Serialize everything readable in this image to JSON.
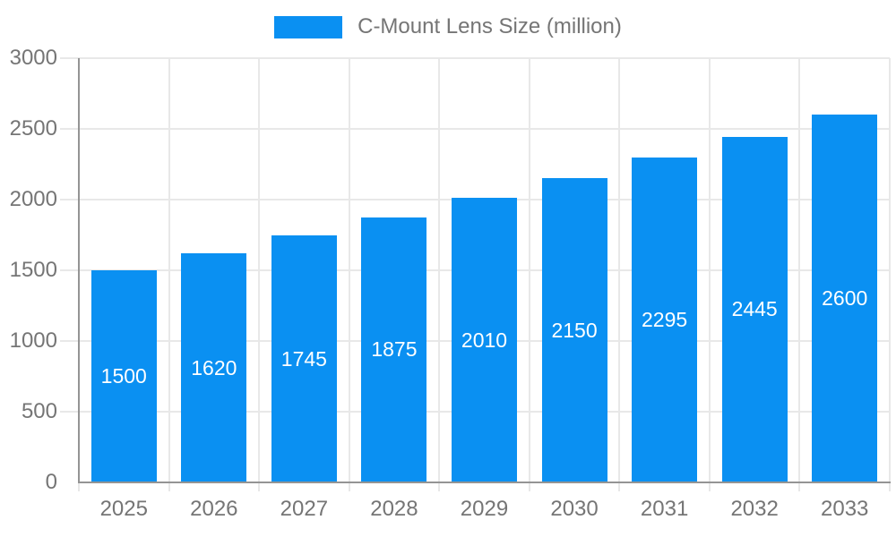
{
  "chart_data": {
    "type": "bar",
    "title": "",
    "legend": {
      "label": "C-Mount Lens Size (million)",
      "position": "top-center"
    },
    "categories": [
      "2025",
      "2026",
      "2027",
      "2028",
      "2029",
      "2030",
      "2031",
      "2032",
      "2033"
    ],
    "series": [
      {
        "name": "C-Mount Lens Size (million)",
        "values": [
          1500,
          1620,
          1745,
          1875,
          2010,
          2150,
          2295,
          2445,
          2600
        ]
      }
    ],
    "bar_value_labels": [
      "1500",
      "1620",
      "1745",
      "1875",
      "2010",
      "2150",
      "2295",
      "2445",
      "2600"
    ],
    "xlabel": "",
    "ylabel": "",
    "ylim": [
      0,
      3000
    ],
    "yticks": [
      0,
      500,
      1000,
      1500,
      2000,
      2500,
      3000
    ],
    "grid": true,
    "colors": {
      "bar": "#0a90f2",
      "bar_label": "#ffffff",
      "axis_line": "#949494",
      "grid_line": "#e8e8e8",
      "tick_text": "#757575",
      "legend_text": "#757575",
      "background": "#ffffff"
    }
  }
}
